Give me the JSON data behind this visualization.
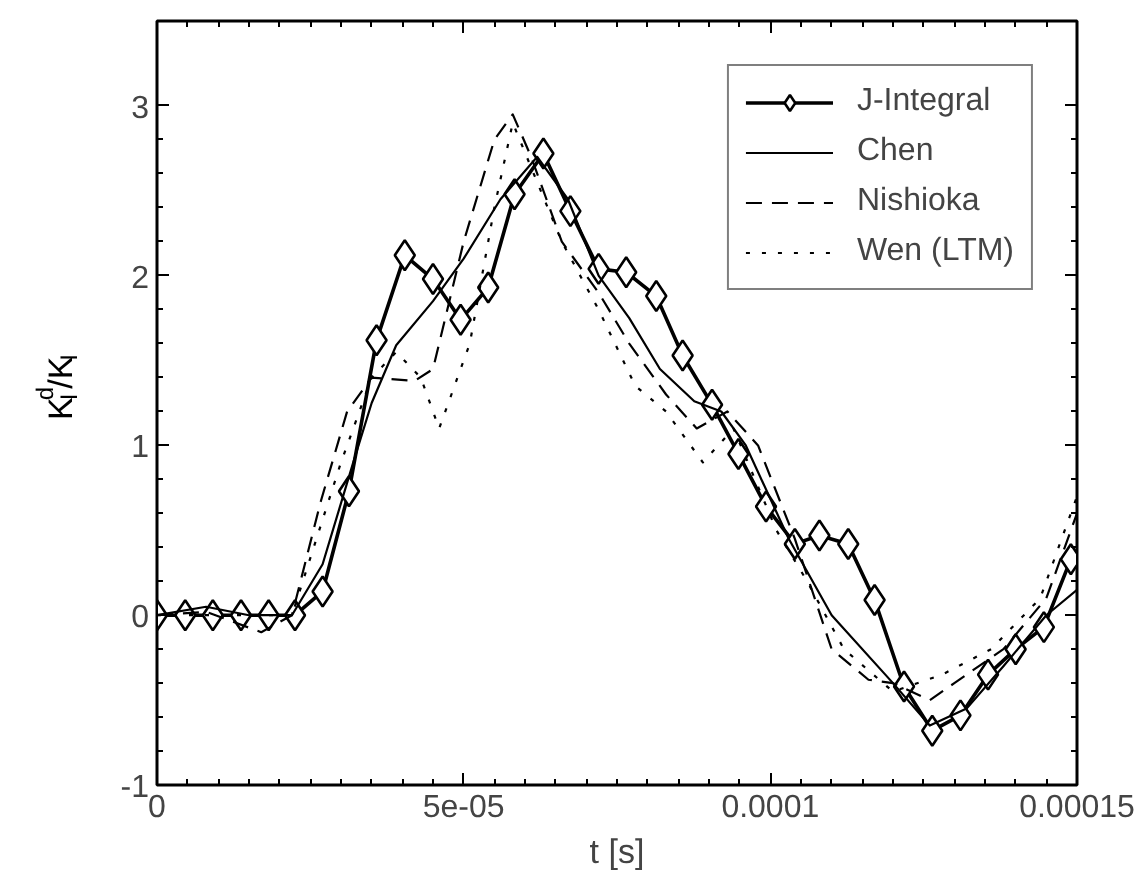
{
  "chart_data": {
    "type": "line",
    "xlabel": "t [s]",
    "ylabel": "K$_{I}$$^{d}$/K$_{I}$",
    "xlim": [
      0,
      0.00015
    ],
    "xticks": [
      0,
      5e-05,
      0.0001,
      0.00015
    ],
    "ylim": [
      -1,
      3.5
    ],
    "yticks": [
      -1,
      0,
      1,
      2,
      3
    ],
    "grid": false,
    "legend": "top right",
    "series": [
      {
        "name": "J-Integral",
        "color": "#000000",
        "marker": "diamond",
        "line_style": "solid",
        "x": [
          0,
          4.6e-06,
          9.1e-06,
          1.37e-05,
          1.82e-05,
          2.25e-05,
          2.7e-05,
          3.13e-05,
          3.58e-05,
          4.04e-05,
          4.5e-05,
          4.95e-05,
          5.4e-05,
          5.83e-05,
          6.3e-05,
          6.74e-05,
          7.2e-05,
          7.65e-05,
          8.14e-05,
          8.57e-05,
          9.05e-05,
          9.48e-05,
          9.93e-05,
          0.000104,
          0.000108,
          0.0001127,
          0.000117,
          0.0001218,
          0.0001264,
          0.000131,
          0.0001355,
          0.00014,
          0.0001446,
          0.000149
        ],
        "values": [
          0,
          0,
          0,
          0,
          0,
          0,
          0.14,
          0.73,
          1.62,
          2.12,
          1.98,
          1.74,
          1.93,
          2.48,
          2.72,
          2.38,
          2.04,
          2.02,
          1.88,
          1.53,
          1.24,
          0.95,
          0.64,
          0.42,
          0.47,
          0.42,
          0.09,
          -0.42,
          -0.68,
          -0.59,
          -0.35,
          -0.2,
          -0.07,
          0.33
        ]
      },
      {
        "name": "Chen",
        "color": "#000000",
        "marker": "none",
        "line_style": "solid",
        "x": [
          0,
          8e-06,
          1.5e-05,
          2.2e-05,
          2.7e-05,
          3.2e-05,
          3.5e-05,
          3.9e-05,
          4.5e-05,
          5e-05,
          5.6e-05,
          6.2e-05,
          6.7e-05,
          7.2e-05,
          7.7e-05,
          8.2e-05,
          8.76e-05,
          9.2e-05,
          9.6e-05,
          0.000103,
          0.00011,
          0.00012,
          0.000126,
          0.000132,
          0.000138,
          0.000145,
          0.00015
        ],
        "values": [
          0,
          0.05,
          0,
          0,
          0.3,
          0.9,
          1.25,
          1.59,
          1.85,
          2.1,
          2.45,
          2.7,
          2.45,
          2.0,
          1.75,
          1.45,
          1.26,
          1.2,
          1.0,
          0.45,
          0.0,
          -0.4,
          -0.65,
          -0.55,
          -0.3,
          0.0,
          0.15
        ]
      },
      {
        "name": "Nishioka",
        "color": "#000000",
        "marker": "none",
        "line_style": "dashed",
        "x": [
          0,
          8e-06,
          1.7e-05,
          2.2e-05,
          2.67e-05,
          3.1e-05,
          3.5e-05,
          4.2e-05,
          4.5e-05,
          5e-05,
          5.5e-05,
          5.8e-05,
          6.1e-05,
          6.6e-05,
          7.2e-05,
          7.7e-05,
          8.3e-05,
          8.8e-05,
          9.3e-05,
          9.8e-05,
          0.000104,
          0.00011,
          0.000116,
          0.00012,
          0.000126,
          0.00013,
          0.000138,
          0.000145,
          0.00015
        ],
        "values": [
          0,
          0.02,
          -0.1,
          0,
          0.67,
          1.2,
          1.4,
          1.38,
          1.45,
          2.2,
          2.8,
          2.95,
          2.7,
          2.2,
          1.9,
          1.6,
          1.3,
          1.1,
          1.2,
          1.0,
          0.45,
          -0.2,
          -0.38,
          -0.4,
          -0.5,
          -0.4,
          -0.2,
          0.1,
          0.6
        ]
      },
      {
        "name": "Wen (LTM)",
        "color": "#000000",
        "marker": "none",
        "line_style": "dotted",
        "x": [
          0,
          1.5e-05,
          2.2e-05,
          3e-05,
          3.5e-05,
          3.9e-05,
          4.3e-05,
          4.6e-05,
          5.1e-05,
          5.5e-05,
          5.8e-05,
          6.2e-05,
          6.6e-05,
          7.2e-05,
          7.8e-05,
          8.3e-05,
          8.9e-05,
          9.4e-05,
          0.000101,
          0.000106,
          0.000112,
          0.00012,
          0.000128,
          0.000136,
          0.000144,
          0.00015
        ],
        "values": [
          0,
          0,
          0,
          0.9,
          1.4,
          1.55,
          1.4,
          1.1,
          1.6,
          2.4,
          2.9,
          2.55,
          2.2,
          1.8,
          1.35,
          1.2,
          0.9,
          1.1,
          0.5,
          0.2,
          -0.2,
          -0.45,
          -0.35,
          -0.2,
          0.1,
          0.7
        ]
      }
    ]
  }
}
